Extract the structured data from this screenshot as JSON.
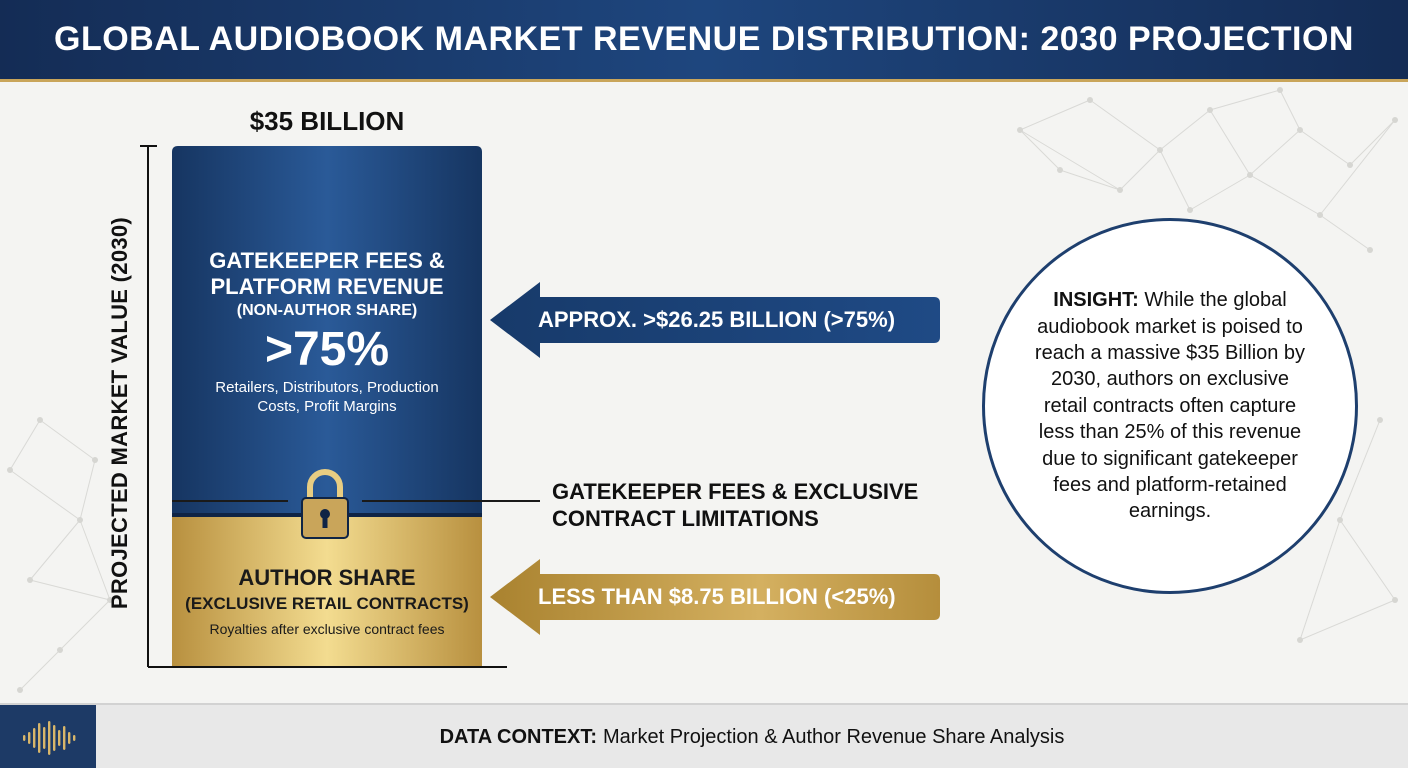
{
  "header": {
    "title": "GLOBAL AUDIOBOOK MARKET REVENUE DISTRIBUTION: 2030 PROJECTION"
  },
  "chart_data": {
    "type": "bar",
    "stacked": true,
    "title": "GLOBAL AUDIOBOOK MARKET REVENUE DISTRIBUTION: 2030 PROJECTION",
    "ylabel": "PROJECTED MARKET VALUE (2030)",
    "total_label": "$35 BILLION",
    "total_value": 35,
    "series": [
      {
        "name": "GATEKEEPER FEES & PLATFORM REVENUE",
        "sub": "(NON-AUTHOR SHARE)",
        "big": ">75%",
        "detail": "Retailers, Distributors, Production Costs, Profit Margins",
        "value": 26.25,
        "share": 0.75,
        "callout": "APPROX. >$26.25 BILLION (>75%)",
        "color": "#1e467e"
      },
      {
        "name": "AUTHOR SHARE",
        "sub": "(EXCLUSIVE RETAIL CONTRACTS)",
        "detail": "Royalties after exclusive contract fees",
        "value": 8.75,
        "share": 0.25,
        "callout": "LESS THAN $8.75 BILLION (<25%)",
        "color": "#c9a55a"
      }
    ],
    "divider_label": [
      "GATEKEEPER FEES & EXCLUSIVE",
      "CONTRACT LIMITATIONS"
    ]
  },
  "insight": {
    "key": "INSIGHT:",
    "text": " While the global audiobook market is poised to reach a massive $35 Billion by 2030, authors on exclusive retail contracts often capture less than 25% of this revenue due to significant gatekeeper fees and platform-retained earnings."
  },
  "footer": {
    "key": "DATA CONTEXT:",
    "text": "Market Projection & Author Revenue Share Analysis"
  },
  "icons": {
    "lock": "lock-icon",
    "logo": "soundwave-logo-icon"
  }
}
